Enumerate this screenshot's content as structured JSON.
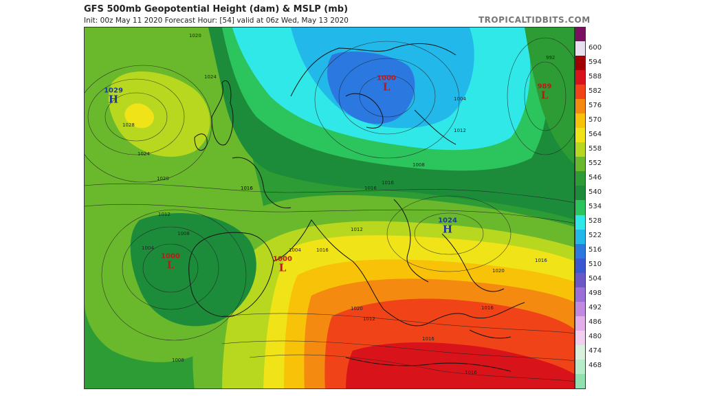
{
  "header": {
    "title": "GFS 500mb Geopotential Height (dam) & MSLP (mb)",
    "subtitle": "Init: 00z May 11 2020   Forecast Hour: [54]   valid at 06z Wed, May 13 2020",
    "brand": "TROPICALTIDBITS.COM"
  },
  "colorbar": {
    "unit": "dam",
    "levels": [
      {
        "label": "600",
        "color": "#e8e0f0"
      },
      {
        "label": "594",
        "color": "#a00000"
      },
      {
        "label": "588",
        "color": "#d8141a"
      },
      {
        "label": "582",
        "color": "#f04418"
      },
      {
        "label": "576",
        "color": "#f48a10"
      },
      {
        "label": "570",
        "color": "#f8c208"
      },
      {
        "label": "564",
        "color": "#f0e418"
      },
      {
        "label": "558",
        "color": "#b8d820"
      },
      {
        "label": "552",
        "color": "#6ab82c"
      },
      {
        "label": "546",
        "color": "#2e9c34"
      },
      {
        "label": "540",
        "color": "#1c8c3a"
      },
      {
        "label": "534",
        "color": "#2cc45c"
      },
      {
        "label": "528",
        "color": "#30e8e8"
      },
      {
        "label": "522",
        "color": "#22b8ea"
      },
      {
        "label": "516",
        "color": "#2a78e0"
      },
      {
        "label": "510",
        "color": "#3a58d0"
      },
      {
        "label": "504",
        "color": "#6a58c8"
      },
      {
        "label": "498",
        "color": "#9a70d8"
      },
      {
        "label": "492",
        "color": "#c08ae0"
      },
      {
        "label": "486",
        "color": "#e4aee8"
      },
      {
        "label": "480",
        "color": "#f0d0ee"
      },
      {
        "label": "474",
        "color": "#d8f0dc"
      },
      {
        "label": "468",
        "color": "#b8ecc8"
      },
      {
        "label": "",
        "color": "#90e0b0"
      }
    ],
    "top_color": "#7a1060"
  },
  "pressure_systems": [
    {
      "id": "high-atlantic",
      "type": "high",
      "value": "1029",
      "letter": "H"
    },
    {
      "id": "low-baltic",
      "type": "low",
      "value": "1000",
      "letter": "L"
    },
    {
      "id": "low-russia",
      "type": "low",
      "value": "989",
      "letter": "L"
    },
    {
      "id": "high-balkans",
      "type": "high",
      "value": "1024",
      "letter": "H"
    },
    {
      "id": "low-portugal",
      "type": "low",
      "value": "1000",
      "letter": "L"
    },
    {
      "id": "low-iberia-east",
      "type": "low",
      "value": "1000",
      "letter": "L"
    }
  ],
  "isobar_labels": [
    "1020",
    "1024",
    "1028",
    "1024",
    "1020",
    "1016",
    "1012",
    "1008",
    "1004",
    "1004",
    "1008",
    "1016",
    "1012",
    "1016",
    "1008",
    "1004",
    "1012",
    "1016",
    "1020",
    "1016",
    "1016",
    "1020",
    "1016",
    "1012",
    "1016",
    "1016",
    "992"
  ]
}
